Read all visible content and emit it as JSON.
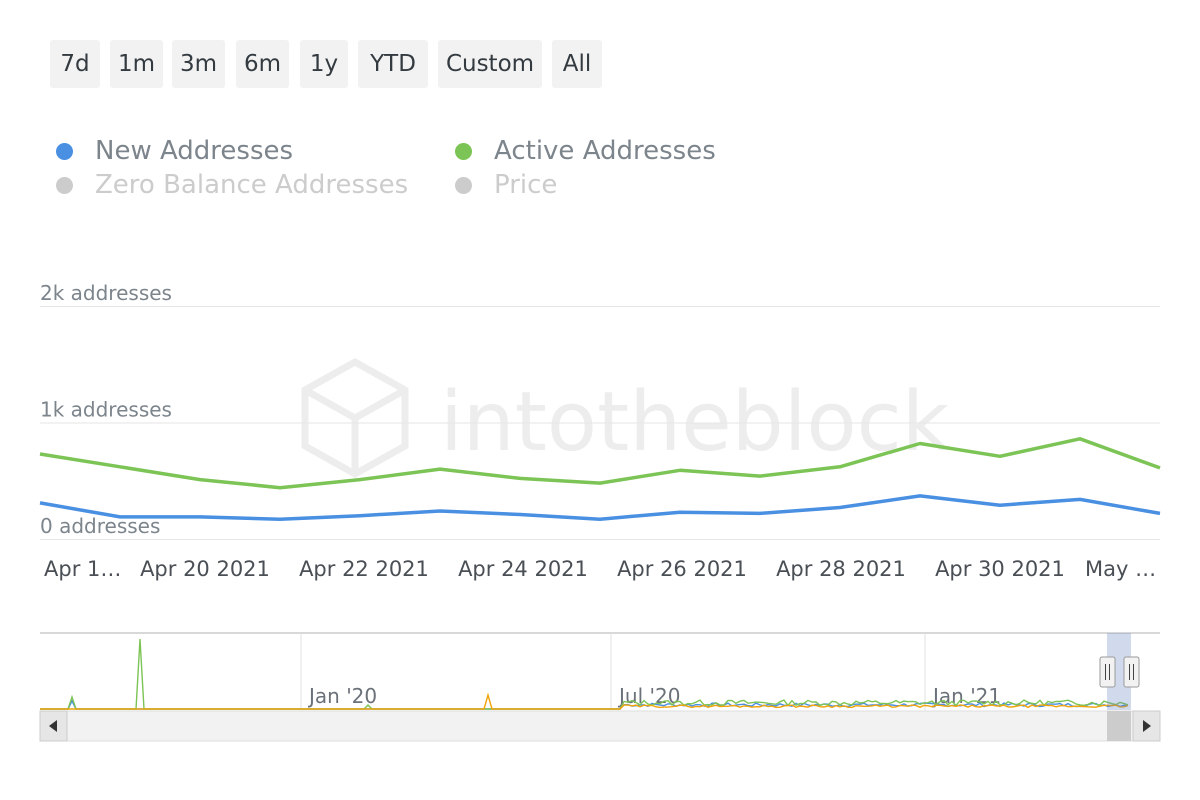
{
  "range_selector": {
    "buttons": [
      "7d",
      "1m",
      "3m",
      "6m",
      "1y",
      "YTD",
      "Custom",
      "All"
    ]
  },
  "legend": [
    {
      "name": "New Addresses",
      "color": "#4a90e2",
      "visible": true
    },
    {
      "name": "Active Addresses",
      "color": "#7cc455",
      "visible": true
    },
    {
      "name": "Zero Balance Addresses",
      "color": "#cccccc",
      "visible": false
    },
    {
      "name": "Price",
      "color": "#cccccc",
      "visible": false
    }
  ],
  "watermark": "intotheblock",
  "chart_data": {
    "type": "line",
    "x": [
      "Apr 18 2021",
      "Apr 19 2021",
      "Apr 20 2021",
      "Apr 21 2021",
      "Apr 22 2021",
      "Apr 23 2021",
      "Apr 24 2021",
      "Apr 25 2021",
      "Apr 26 2021",
      "Apr 27 2021",
      "Apr 28 2021",
      "Apr 29 2021",
      "Apr 30 2021",
      "May 1 2021",
      "May 2 2021"
    ],
    "series": [
      {
        "name": "New Addresses",
        "color": "#4a90e2",
        "values": [
          310,
          190,
          190,
          170,
          200,
          240,
          210,
          170,
          230,
          220,
          270,
          370,
          290,
          340,
          220
        ]
      },
      {
        "name": "Active Addresses",
        "color": "#7cc455",
        "values": [
          730,
          620,
          510,
          440,
          510,
          600,
          520,
          480,
          590,
          540,
          620,
          820,
          710,
          860,
          610
        ]
      }
    ],
    "ylim": [
      0,
      2000
    ],
    "y_ticks": [
      {
        "value": 0,
        "label": "0 addresses"
      },
      {
        "value": 1000,
        "label": "1k addresses"
      },
      {
        "value": 2000,
        "label": "2k addresses"
      }
    ],
    "x_tick_labels": [
      "Apr 1…",
      "Apr 20 2021",
      "Apr 22 2021",
      "Apr 24 2021",
      "Apr 26 2021",
      "Apr 28 2021",
      "Apr 30 2021",
      "May …"
    ],
    "grid": true,
    "legend_position": "top-left"
  },
  "navigator": {
    "labels": [
      "Jan '20",
      "Jul '20",
      "Jan '21"
    ],
    "series_colors": [
      "#4a90e2",
      "#7cc455",
      "#f0a30a"
    ],
    "selected_range": [
      "Apr 18 2021",
      "May 2 2021"
    ]
  }
}
